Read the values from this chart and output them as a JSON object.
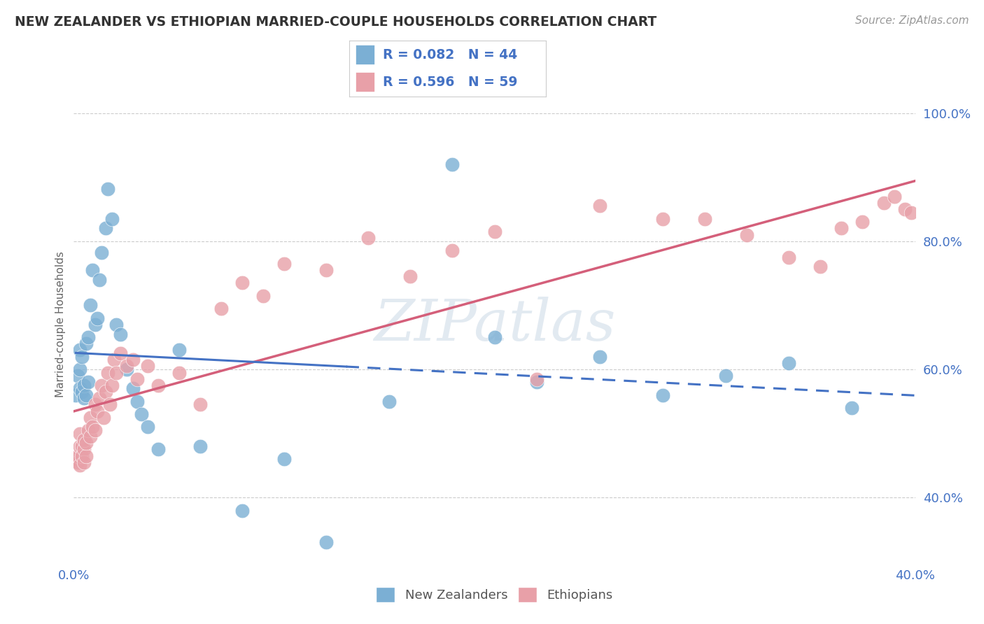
{
  "title": "NEW ZEALANDER VS ETHIOPIAN MARRIED-COUPLE HOUSEHOLDS CORRELATION CHART",
  "source": "Source: ZipAtlas.com",
  "ylabel": "Married-couple Households",
  "ytick_values": [
    0.4,
    0.6,
    0.8,
    1.0
  ],
  "xlim": [
    0.0,
    0.4
  ],
  "ylim": [
    0.3,
    1.04
  ],
  "nz_color": "#7bafd4",
  "eth_color": "#e8a0a8",
  "nz_line_color": "#4472c4",
  "eth_line_color": "#d45f7a",
  "text_color": "#4472c4",
  "legend_nz_text": "R = 0.082   N = 44",
  "legend_eth_text": "R = 0.596   N = 59",
  "nz_x": [
    0.001,
    0.002,
    0.003,
    0.003,
    0.003,
    0.004,
    0.004,
    0.005,
    0.005,
    0.006,
    0.006,
    0.007,
    0.007,
    0.008,
    0.009,
    0.01,
    0.011,
    0.012,
    0.013,
    0.015,
    0.016,
    0.018,
    0.02,
    0.022,
    0.025,
    0.028,
    0.03,
    0.032,
    0.035,
    0.04,
    0.05,
    0.06,
    0.08,
    0.1,
    0.12,
    0.15,
    0.18,
    0.2,
    0.22,
    0.25,
    0.28,
    0.31,
    0.34,
    0.37
  ],
  "nz_y": [
    0.56,
    0.59,
    0.57,
    0.6,
    0.63,
    0.565,
    0.62,
    0.555,
    0.575,
    0.56,
    0.64,
    0.58,
    0.65,
    0.7,
    0.755,
    0.67,
    0.68,
    0.74,
    0.782,
    0.82,
    0.882,
    0.835,
    0.67,
    0.655,
    0.6,
    0.57,
    0.55,
    0.53,
    0.51,
    0.475,
    0.63,
    0.48,
    0.38,
    0.46,
    0.33,
    0.55,
    0.92,
    0.65,
    0.58,
    0.62,
    0.56,
    0.59,
    0.61,
    0.54
  ],
  "eth_x": [
    0.001,
    0.002,
    0.002,
    0.003,
    0.003,
    0.003,
    0.004,
    0.004,
    0.005,
    0.005,
    0.005,
    0.006,
    0.006,
    0.007,
    0.008,
    0.008,
    0.009,
    0.01,
    0.01,
    0.011,
    0.012,
    0.013,
    0.014,
    0.015,
    0.016,
    0.017,
    0.018,
    0.019,
    0.02,
    0.022,
    0.025,
    0.028,
    0.03,
    0.035,
    0.04,
    0.05,
    0.06,
    0.07,
    0.08,
    0.09,
    0.1,
    0.12,
    0.14,
    0.16,
    0.18,
    0.2,
    0.22,
    0.25,
    0.28,
    0.3,
    0.32,
    0.34,
    0.355,
    0.365,
    0.375,
    0.385,
    0.39,
    0.395,
    0.398
  ],
  "eth_y": [
    0.46,
    0.455,
    0.465,
    0.5,
    0.48,
    0.45,
    0.48,
    0.465,
    0.475,
    0.455,
    0.49,
    0.465,
    0.485,
    0.505,
    0.495,
    0.525,
    0.51,
    0.545,
    0.505,
    0.535,
    0.555,
    0.575,
    0.525,
    0.565,
    0.595,
    0.545,
    0.575,
    0.615,
    0.595,
    0.625,
    0.605,
    0.615,
    0.585,
    0.605,
    0.575,
    0.595,
    0.545,
    0.695,
    0.735,
    0.715,
    0.765,
    0.755,
    0.805,
    0.745,
    0.785,
    0.815,
    0.585,
    0.855,
    0.835,
    0.835,
    0.81,
    0.775,
    0.76,
    0.82,
    0.83,
    0.86,
    0.87,
    0.85,
    0.845
  ]
}
